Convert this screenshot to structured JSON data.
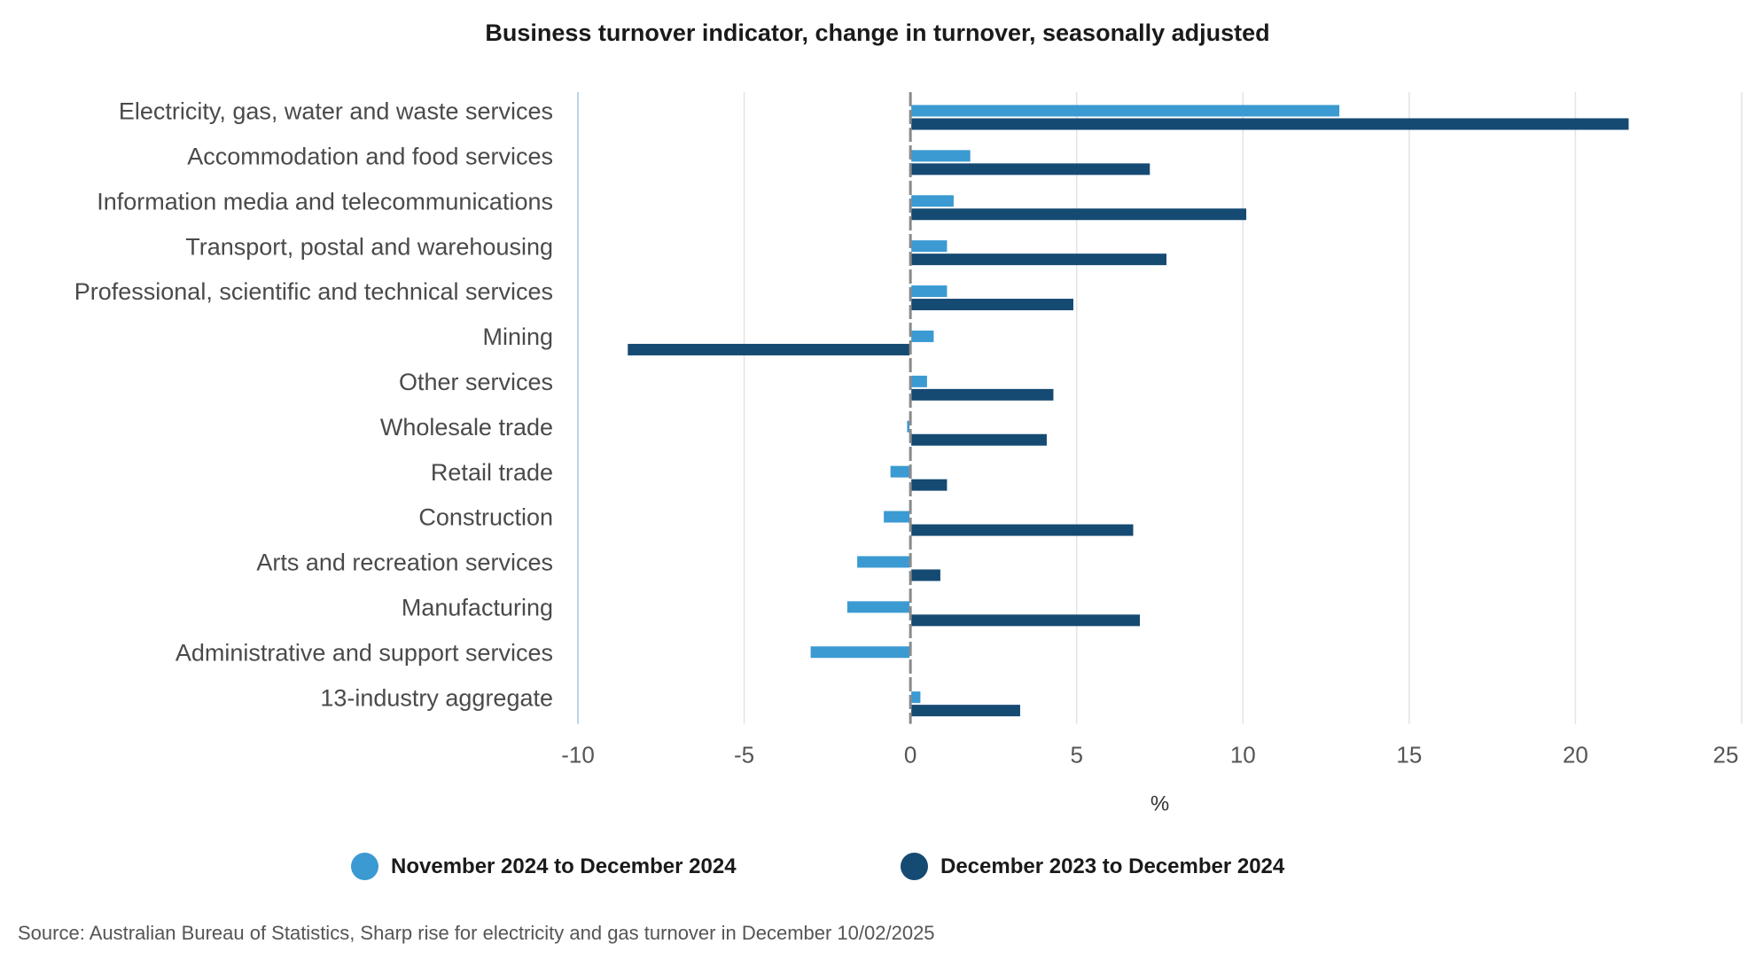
{
  "chart_data": {
    "type": "bar",
    "orientation": "horizontal",
    "title": "Business turnover indicator, change in turnover, seasonally adjusted",
    "xlabel": "%",
    "ylabel": "",
    "xlim": [
      -10,
      25
    ],
    "xticks": [
      "-10",
      "-5",
      "0",
      "5",
      "10",
      "15",
      "20",
      "25"
    ],
    "grid": true,
    "legend_position": "bottom",
    "categories": [
      "Electricity, gas, water and waste services",
      "Accommodation and food services",
      "Information media and telecommunications",
      "Transport, postal and warehousing",
      "Professional, scientific and technical services",
      "Mining",
      "Other services",
      "Wholesale trade",
      "Retail trade",
      "Construction",
      "Arts and recreation services",
      "Manufacturing",
      "Administrative and support services",
      "13-industry aggregate"
    ],
    "series": [
      {
        "name": "November 2024 to December 2024",
        "color": "#3b9ad2",
        "values": [
          12.9,
          1.8,
          1.3,
          1.1,
          1.1,
          0.7,
          0.5,
          -0.1,
          -0.6,
          -0.8,
          -1.6,
          -1.9,
          -3.0,
          0.3
        ]
      },
      {
        "name": "December 2023 to December 2024",
        "color": "#154a73",
        "values": [
          21.6,
          7.2,
          10.1,
          7.7,
          4.9,
          -8.5,
          4.3,
          4.1,
          1.1,
          6.7,
          0.9,
          6.9,
          0.0,
          3.3
        ]
      }
    ],
    "source": "Source: Australian Bureau of Statistics, Sharp rise for electricity and gas turnover in December 10/02/2025"
  }
}
